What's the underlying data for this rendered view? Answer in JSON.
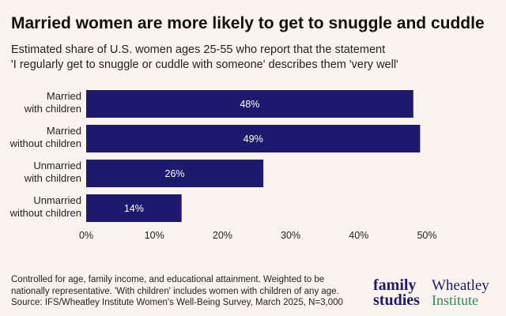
{
  "header": {
    "title": "Married women are more likely to get to snuggle and cuddle",
    "subtitle_line1": "Estimated share of U.S. women ages 25-55 who report that the statement",
    "subtitle_line2": "'I regularly get to snuggle or cuddle with someone' describes them 'very well'"
  },
  "chart_data": {
    "type": "bar",
    "orientation": "horizontal",
    "categories": [
      [
        "Married",
        "with children"
      ],
      [
        "Married",
        "without children"
      ],
      [
        "Unmarried",
        "with children"
      ],
      [
        "Unmarried",
        "without children"
      ]
    ],
    "values": [
      48,
      49,
      26,
      14
    ],
    "value_labels": [
      "48%",
      "49%",
      "26%",
      "14%"
    ],
    "xlim": [
      0,
      50
    ],
    "xticks": [
      0,
      10,
      20,
      30,
      40,
      50
    ],
    "xtick_labels": [
      "0%",
      "10%",
      "20%",
      "30%",
      "40%",
      "50%"
    ],
    "bar_color": "#1c1a6e",
    "grid": false,
    "legend": "none"
  },
  "notes": {
    "line1": "Controlled for age, family income, and educational attainment. Weighted to be",
    "line2": "nationally representative. 'With children' includes women with children of any age.",
    "line3": "Source: IFS/Wheatley Institute Women's Well-Being Survey, March 2025, N=3,000"
  },
  "logos": {
    "family_studies_line1": "family",
    "family_studies_line2": "studies",
    "wheatley_line1": "Wheatley",
    "wheatley_line2": "Institute"
  },
  "colors": {
    "background": "#fbf4ee",
    "bar": "#1c1a6e",
    "wheatley_green": "#2a8a5a"
  }
}
